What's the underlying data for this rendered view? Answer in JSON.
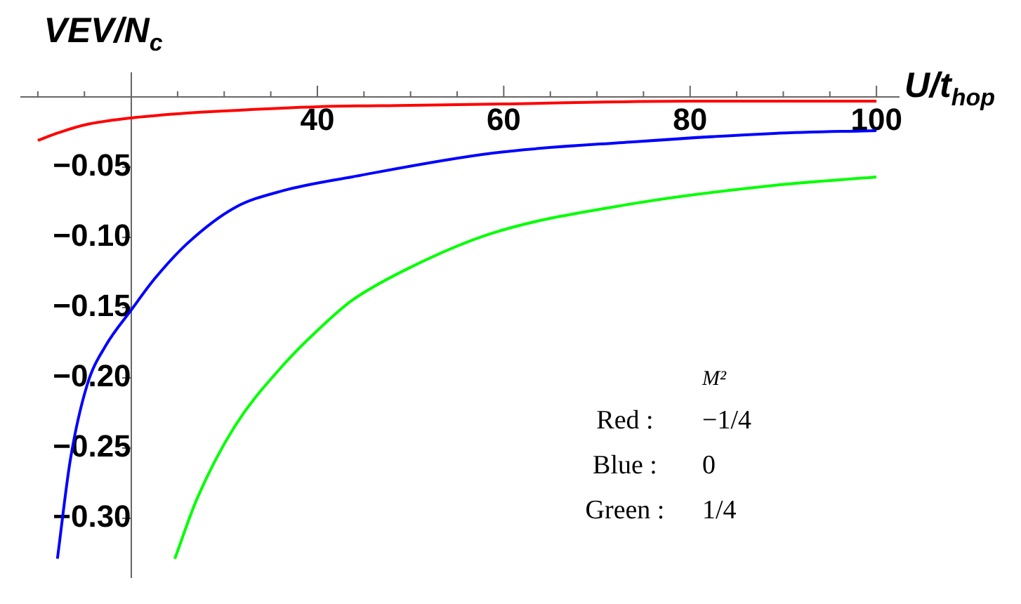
{
  "chart_data": {
    "type": "line",
    "xlabel": "U/t$_{hop}$",
    "ylabel": "VEV/N$_{c}$",
    "xlim": [
      8.2,
      102.4
    ],
    "ylim": [
      -0.342,
      0.017
    ],
    "xticks": [
      {
        "value": 10,
        "label": null
      },
      {
        "value": 15,
        "label": null
      },
      {
        "value": 25,
        "label": null
      },
      {
        "value": 30,
        "label": null
      },
      {
        "value": 35,
        "label": null
      },
      40,
      {
        "value": 45,
        "label": null
      },
      {
        "value": 50,
        "label": null
      },
      {
        "value": 55,
        "label": null
      },
      60,
      {
        "value": 65,
        "label": null
      },
      {
        "value": 70,
        "label": null
      },
      {
        "value": 75,
        "label": null
      },
      80,
      {
        "value": 85,
        "label": null
      },
      {
        "value": 90,
        "label": null
      },
      {
        "value": 95,
        "label": null
      },
      100
    ],
    "yticks": [
      {
        "value": -0.05,
        "label": "−0.05"
      },
      {
        "value": -0.1,
        "label": "−0.10"
      },
      {
        "value": -0.15,
        "label": "−0.15"
      },
      {
        "value": -0.2,
        "label": "−0.20"
      },
      {
        "value": -0.25,
        "label": "−0.25"
      },
      {
        "value": -0.3,
        "label": "−0.30"
      }
    ],
    "series": [
      {
        "color": "#ff0000",
        "x": [
          10,
          12,
          15,
          20,
          25,
          30,
          40,
          50,
          60,
          80,
          100
        ],
        "values": [
          -0.031,
          -0.026,
          -0.02,
          -0.015,
          -0.012,
          -0.01,
          -0.007,
          -0.006,
          -0.005,
          -0.003,
          -0.003
        ]
      },
      {
        "color": "#0000ff",
        "x": [
          12.1,
          13.5,
          15.3,
          17.3,
          20,
          22.6,
          26.1,
          31.1,
          36.2,
          43.7,
          58.8,
          73.9,
          89,
          100
        ],
        "values": [
          -0.329,
          -0.258,
          -0.205,
          -0.177,
          -0.152,
          -0.129,
          -0.104,
          -0.079,
          -0.067,
          -0.057,
          -0.04,
          -0.032,
          -0.026,
          -0.024
        ]
      },
      {
        "color": "#00ff00",
        "x": [
          24.7,
          27.1,
          31.1,
          36.2,
          41.2,
          43.7,
          49.8,
          58.8,
          73.9,
          89,
          100
        ],
        "values": [
          -0.329,
          -0.286,
          -0.235,
          -0.192,
          -0.159,
          -0.145,
          -0.122,
          -0.097,
          -0.076,
          -0.063,
          -0.057
        ]
      }
    ],
    "annotations": [
      "M²",
      "Red :",
      "−1/4",
      "Blue :",
      "0",
      "Green :",
      "1/4"
    ],
    "grid": false,
    "legend": false,
    "marker": "none",
    "line_style": "solid"
  }
}
